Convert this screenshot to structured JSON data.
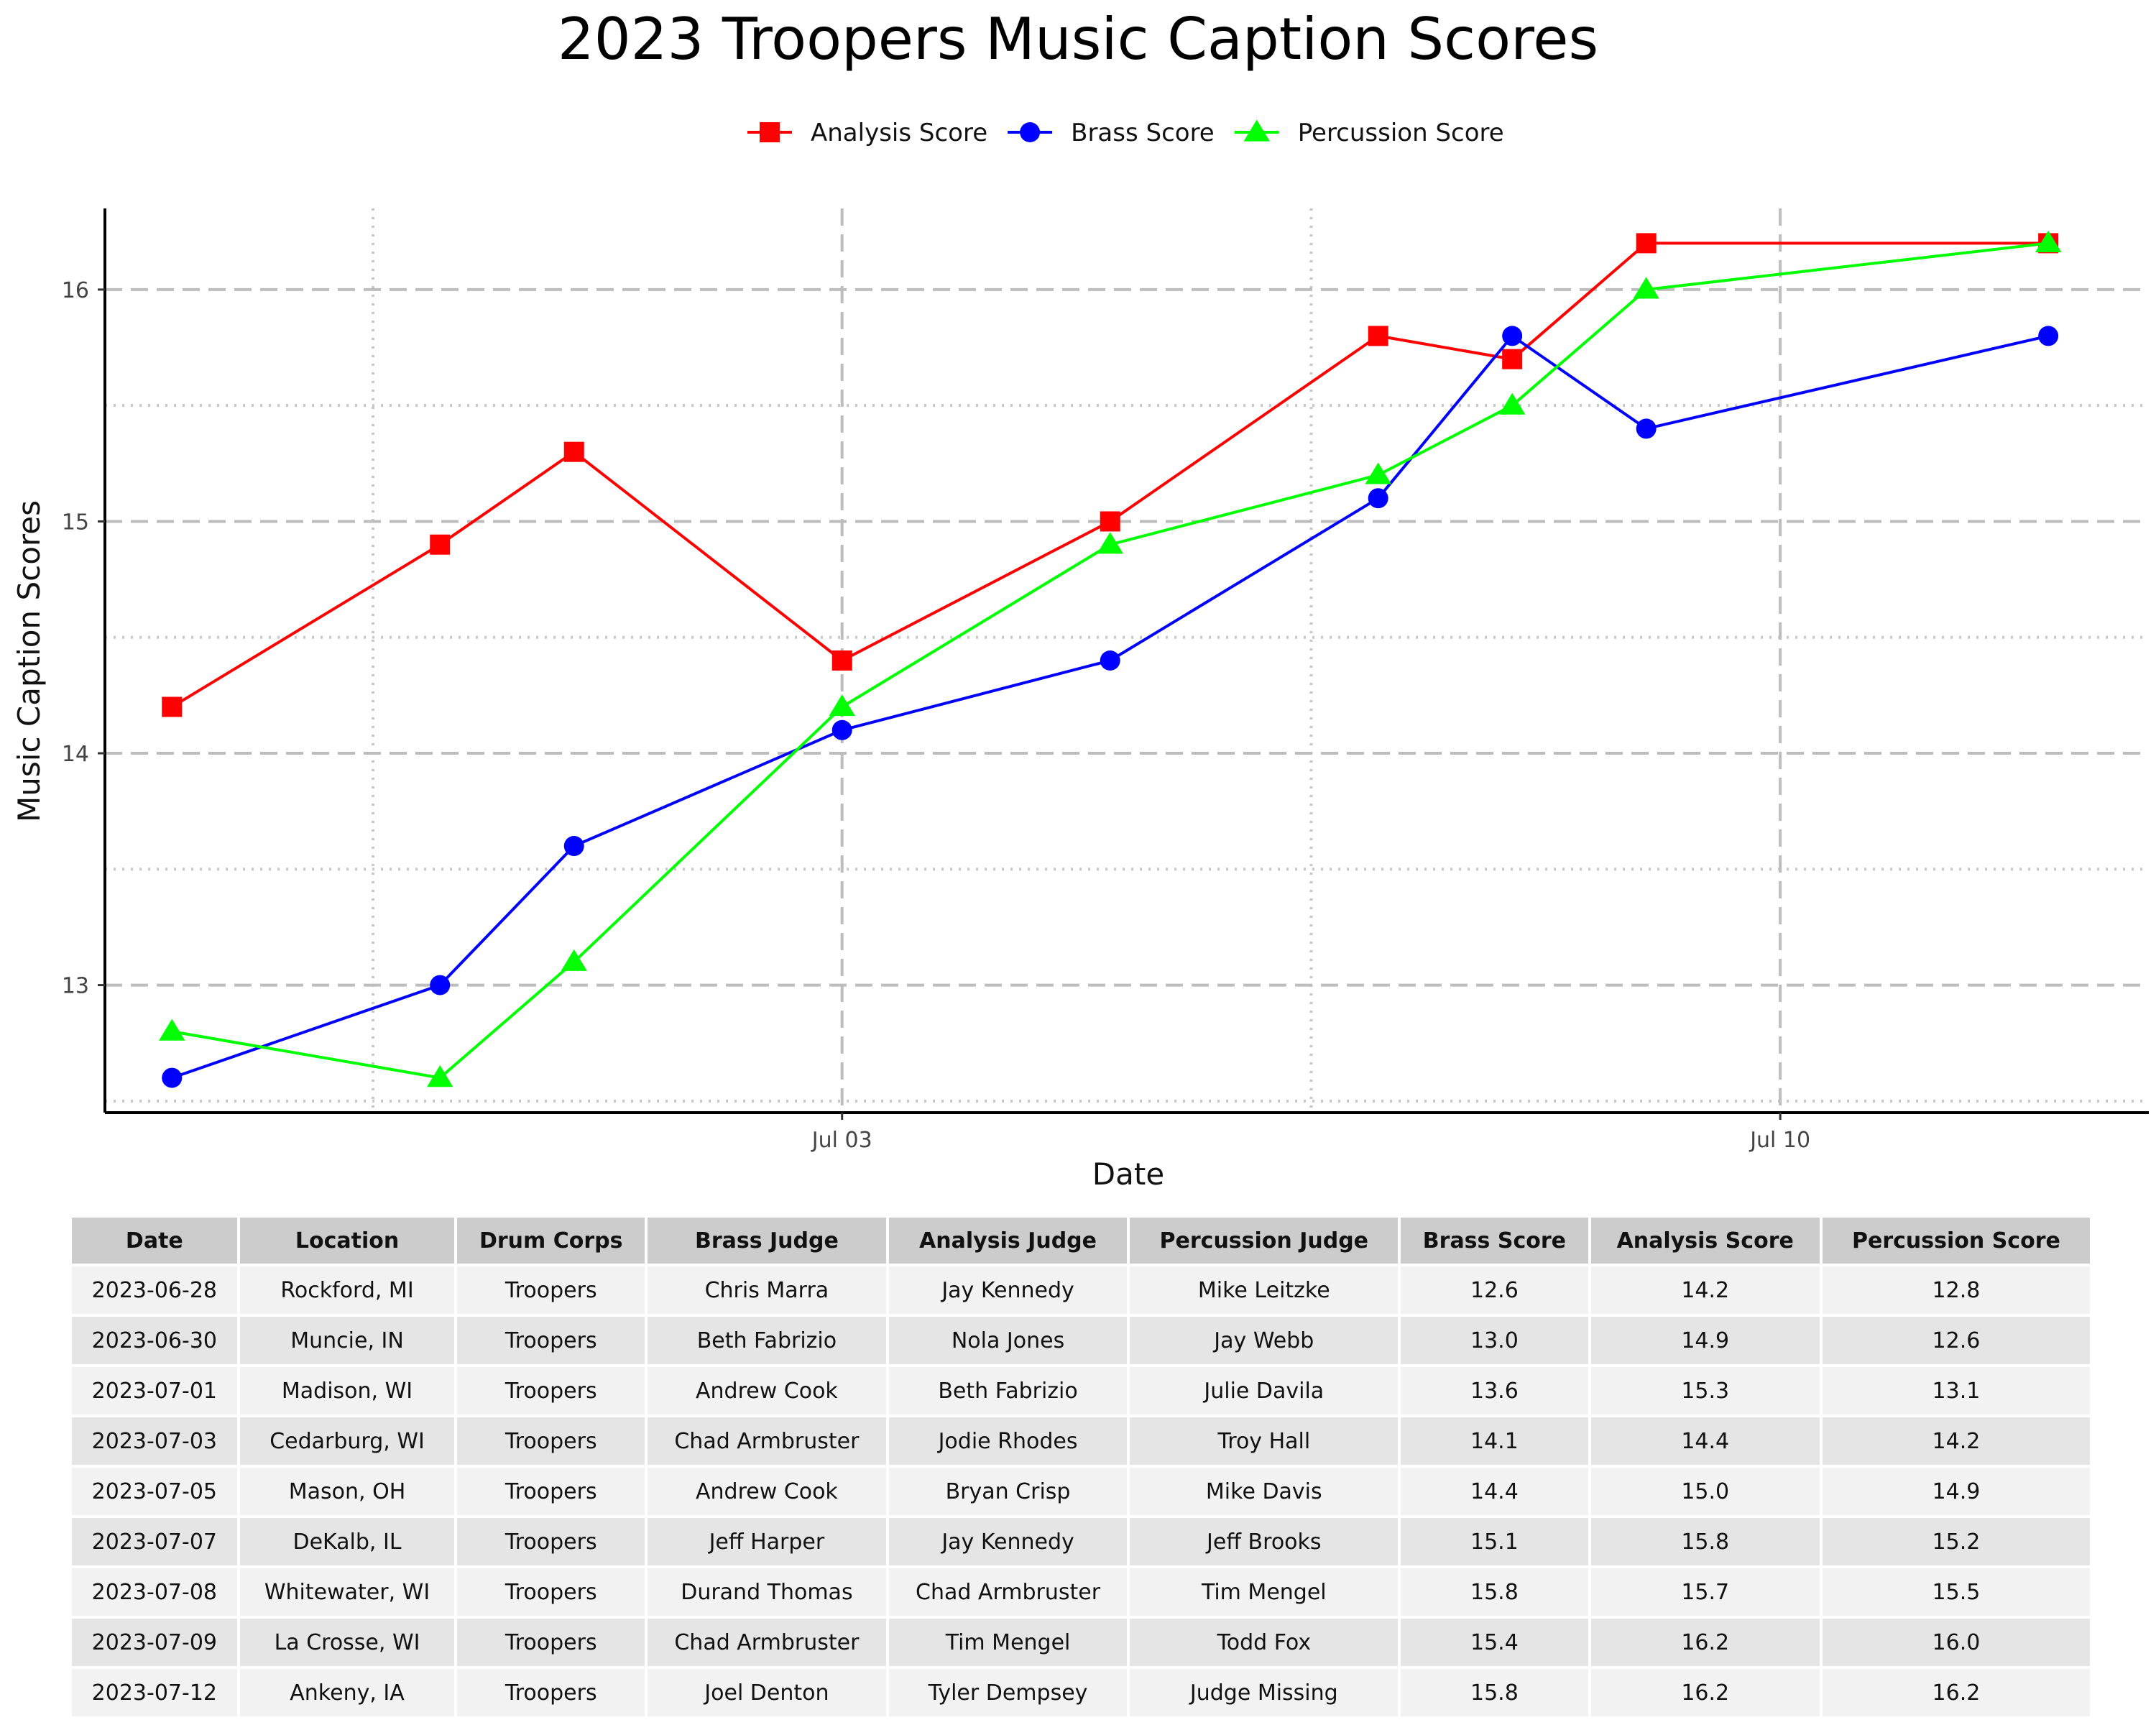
{
  "chart_data": {
    "type": "line",
    "title": "2023 Troopers Music Caption Scores",
    "xlabel": "Date",
    "ylabel": "Music Caption Scores",
    "x": [
      "2023-06-28",
      "2023-06-30",
      "2023-07-01",
      "2023-07-03",
      "2023-07-05",
      "2023-07-07",
      "2023-07-08",
      "2023-07-09",
      "2023-07-12"
    ],
    "x_ticks": [
      {
        "date": "2023-07-03",
        "label": "Jul 03"
      },
      {
        "date": "2023-07-10",
        "label": "Jul 10"
      }
    ],
    "xlim": [
      "2023-06-27T12:00",
      "2023-07-12T18:00"
    ],
    "ylim": [
      12.45,
      16.35
    ],
    "y_ticks": [
      13,
      14,
      15,
      16
    ],
    "y_minor_ticks": [
      12.5,
      13.5,
      14.5,
      15.5
    ],
    "x_minor_ticks": [
      "2023-06-29T12:00",
      "2023-07-06T12:00"
    ],
    "grid": true,
    "legend": "top-center",
    "series": [
      {
        "name": "Analysis Score",
        "color": "#ff0000",
        "marker": "square",
        "values": [
          14.2,
          14.9,
          15.3,
          14.4,
          15.0,
          15.8,
          15.7,
          16.2,
          16.2
        ]
      },
      {
        "name": "Brass Score",
        "color": "#0000ff",
        "marker": "circle",
        "values": [
          12.6,
          13.0,
          13.6,
          14.1,
          14.4,
          15.1,
          15.8,
          15.4,
          15.8
        ]
      },
      {
        "name": "Percussion Score",
        "color": "#00ff00",
        "marker": "triangle",
        "values": [
          12.8,
          12.6,
          13.1,
          14.2,
          14.9,
          15.2,
          15.5,
          16.0,
          16.2
        ]
      }
    ]
  },
  "table": {
    "headers": [
      "Date",
      "Location",
      "Drum Corps",
      "Brass Judge",
      "Analysis Judge",
      "Percussion Judge",
      "Brass Score",
      "Analysis Score",
      "Percussion Score"
    ],
    "rows": [
      [
        "2023-06-28",
        "Rockford, MI",
        "Troopers",
        "Chris Marra",
        "Jay Kennedy",
        "Mike Leitzke",
        "12.6",
        "14.2",
        "12.8"
      ],
      [
        "2023-06-30",
        "Muncie, IN",
        "Troopers",
        "Beth Fabrizio",
        "Nola Jones",
        "Jay Webb",
        "13.0",
        "14.9",
        "12.6"
      ],
      [
        "2023-07-01",
        "Madison, WI",
        "Troopers",
        "Andrew Cook",
        "Beth Fabrizio",
        "Julie Davila",
        "13.6",
        "15.3",
        "13.1"
      ],
      [
        "2023-07-03",
        "Cedarburg, WI",
        "Troopers",
        "Chad Armbruster",
        "Jodie Rhodes",
        "Troy Hall",
        "14.1",
        "14.4",
        "14.2"
      ],
      [
        "2023-07-05",
        "Mason, OH",
        "Troopers",
        "Andrew Cook",
        "Bryan Crisp",
        "Mike Davis",
        "14.4",
        "15.0",
        "14.9"
      ],
      [
        "2023-07-07",
        "DeKalb, IL",
        "Troopers",
        "Jeff Harper",
        "Jay Kennedy",
        "Jeff Brooks",
        "15.1",
        "15.8",
        "15.2"
      ],
      [
        "2023-07-08",
        "Whitewater, WI",
        "Troopers",
        "Durand Thomas",
        "Chad Armbruster",
        "Tim Mengel",
        "15.8",
        "15.7",
        "15.5"
      ],
      [
        "2023-07-09",
        "La Crosse, WI",
        "Troopers",
        "Chad Armbruster",
        "Tim Mengel",
        "Todd Fox",
        "15.4",
        "16.2",
        "16.0"
      ],
      [
        "2023-07-12",
        "Ankeny, IA",
        "Troopers",
        "Joel Denton",
        "Tyler Dempsey",
        "Judge Missing",
        "15.8",
        "16.2",
        "16.2"
      ]
    ]
  }
}
